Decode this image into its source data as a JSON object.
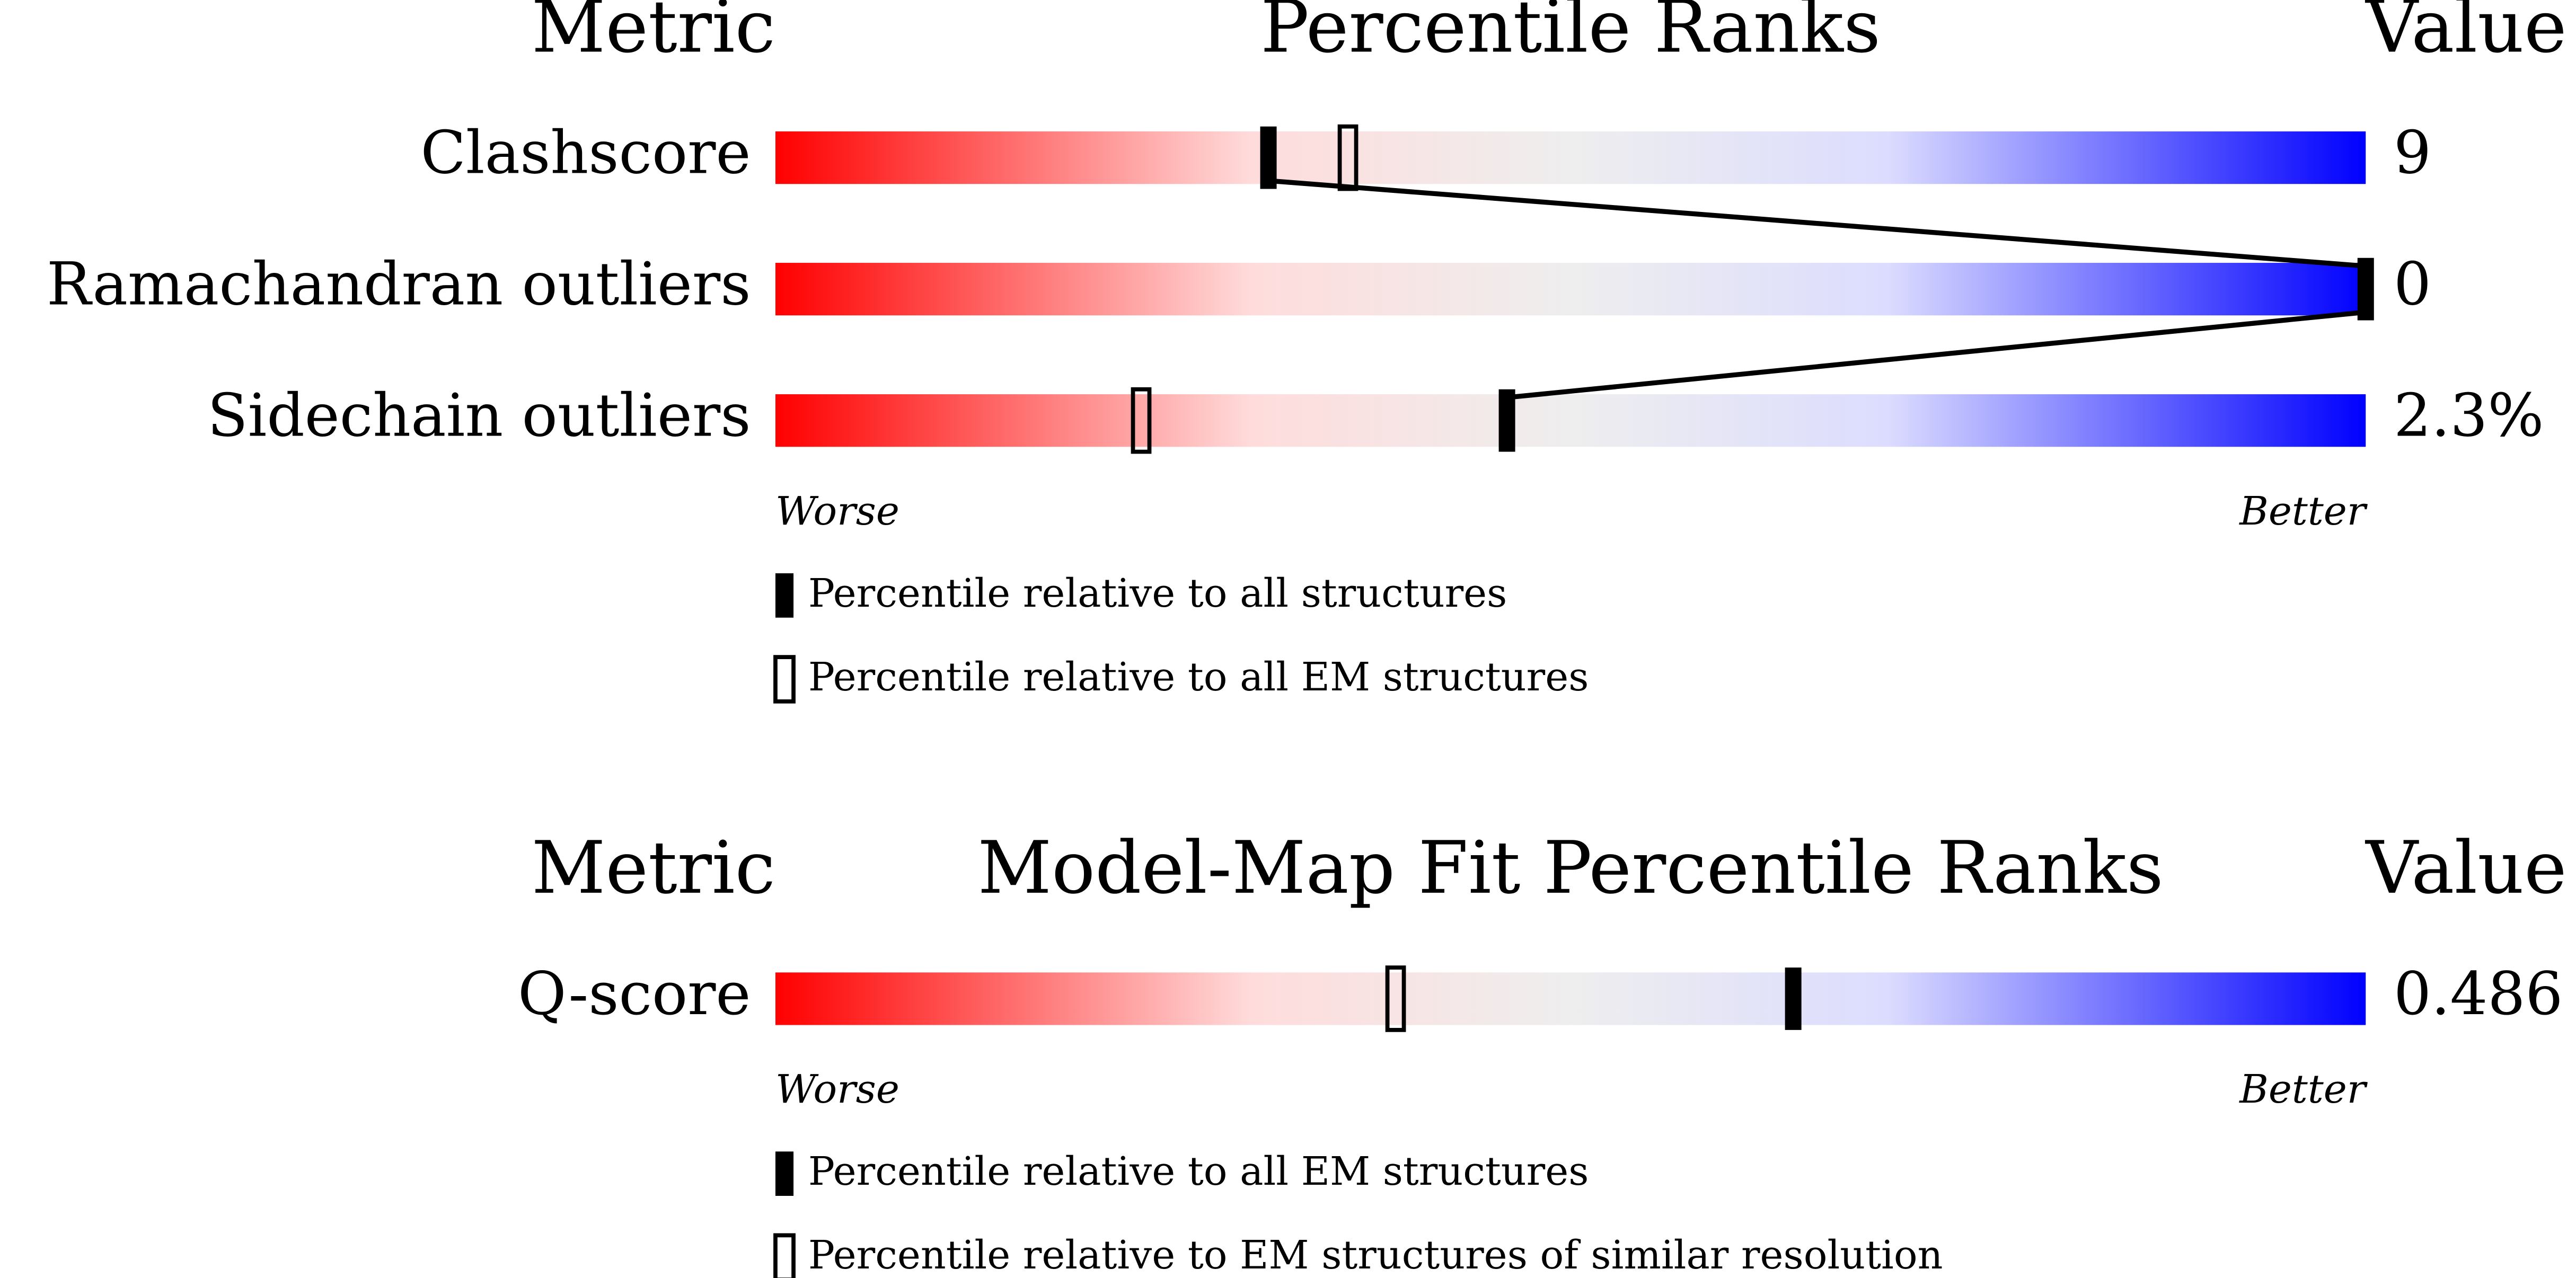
{
  "chart_data": [
    {
      "type": "percentile-slider",
      "metric_header": "Metric",
      "title": "Percentile Ranks",
      "value_header": "Value",
      "categories": [
        "Clashscore",
        "Ramachandran outliers",
        "Sidechain outliers"
      ],
      "value_texts": [
        "9",
        "0",
        "2.3%"
      ],
      "xlim": [
        0,
        100
      ],
      "worse_label": "Worse",
      "better_label": "Better",
      "series": [
        {
          "name": "Percentile relative to all structures",
          "style": "filled",
          "color": "#000000",
          "values": [
            31,
            100,
            46
          ]
        },
        {
          "name": "Percentile relative to all EM structures",
          "style": "open",
          "color": "#000000",
          "values": [
            36,
            null,
            23
          ]
        }
      ]
    },
    {
      "type": "percentile-slider",
      "metric_header": "Metric",
      "title": "Model-Map Fit Percentile Ranks",
      "value_header": "Value",
      "categories": [
        "Q-score"
      ],
      "value_texts": [
        "0.486"
      ],
      "xlim": [
        0,
        100
      ],
      "worse_label": "Worse",
      "better_label": "Better",
      "series": [
        {
          "name": "Percentile relative to all EM structures",
          "style": "filled",
          "color": "#000000",
          "values": [
            64
          ]
        },
        {
          "name": "Percentile relative to EM structures of similar resolution",
          "style": "open",
          "color": "#000000",
          "values": [
            39
          ]
        }
      ]
    }
  ]
}
